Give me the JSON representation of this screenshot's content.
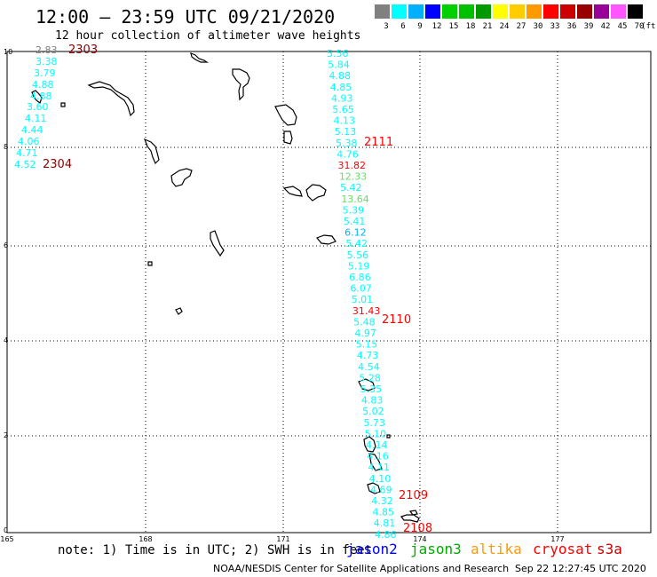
{
  "header": {
    "title": "12:00 – 23:59 UTC 09/21/2020",
    "subtitle": "12 hour collection of altimeter wave heights"
  },
  "legend": {
    "unit": "(ft)",
    "bins": [
      {
        "label": "3",
        "color": "#808080"
      },
      {
        "label": "6",
        "color": "#00ffff"
      },
      {
        "label": "9",
        "color": "#00b0ff"
      },
      {
        "label": "12",
        "color": "#0000ff"
      },
      {
        "label": "15",
        "color": "#00d000"
      },
      {
        "label": "18",
        "color": "#00c000"
      },
      {
        "label": "21",
        "color": "#009900"
      },
      {
        "label": "24",
        "color": "#ffff00"
      },
      {
        "label": "27",
        "color": "#ffcc00"
      },
      {
        "label": "30",
        "color": "#ff9900"
      },
      {
        "label": "33",
        "color": "#ff0000"
      },
      {
        "label": "36",
        "color": "#cc0000"
      },
      {
        "label": "39",
        "color": "#990000"
      },
      {
        "label": "42",
        "color": "#990099"
      },
      {
        "label": "45",
        "color": "#ff55ff"
      },
      {
        "label": "70",
        "color": "#000000"
      }
    ]
  },
  "map": {
    "x_ticks": [
      "165",
      "168",
      "171",
      "174",
      "177"
    ],
    "y_ticks": [
      "10",
      "8",
      "6",
      "4",
      "2",
      "0"
    ],
    "west_track": {
      "values": [
        "2.83",
        "3.38",
        "3.79",
        "4.88",
        "4.88",
        "3.60",
        "4.11",
        "4.44",
        "4.06",
        "4.71",
        "4.52"
      ],
      "colors": [
        "#808080",
        "#00ffff",
        "#00ffff",
        "#00ffff",
        "#00ffff",
        "#00ffff",
        "#00ffff",
        "#00ffff",
        "#00ffff",
        "#00ffff",
        "#00ffff"
      ]
    },
    "east_track": {
      "values": [
        "5.56",
        "5.84",
        "4.88",
        "4.85",
        "4.93",
        "5.65",
        "4.13",
        "5.13",
        "5.38",
        "4.76",
        "31.82",
        "12.33",
        "5.42",
        "13.64",
        "5.39",
        "5.41",
        "6.12",
        "5.42",
        "5.56",
        "5.19",
        "6.86",
        "6.07",
        "5.01",
        "31.43",
        "5.48",
        "4.97",
        "5.15",
        "4.73",
        "4.54",
        "5.28",
        "5.35",
        "4.83",
        "5.02",
        "5.73",
        "5.10",
        "4.14",
        "4.16",
        "4.11",
        "4.10",
        "4.69",
        "4.32",
        "4.85",
        "4.81",
        "4.86"
      ],
      "colors": [
        "#00ffff",
        "#00ffff",
        "#00ffff",
        "#00ffff",
        "#00ffff",
        "#00ffff",
        "#00ffff",
        "#00ffff",
        "#00ffff",
        "#00ffff",
        "#ff0000",
        "#66dd66",
        "#00ffff",
        "#66dd66",
        "#00ffff",
        "#00ffff",
        "#00b0ff",
        "#00ffff",
        "#00ffff",
        "#00ffff",
        "#00ffff",
        "#00ffff",
        "#00ffff",
        "#ff0000",
        "#00ffff",
        "#00ffff",
        "#00ffff",
        "#00ffff",
        "#00ffff",
        "#00ffff",
        "#00ffff",
        "#00ffff",
        "#00ffff",
        "#00ffff",
        "#00ffff",
        "#00ffff",
        "#00ffff",
        "#00ffff",
        "#00ffff",
        "#00ffff",
        "#00ffff",
        "#00ffff",
        "#00ffff",
        "#00ffff"
      ]
    },
    "time_labels": [
      {
        "text": "2303",
        "color": "#8b0000"
      },
      {
        "text": "2304",
        "color": "#8b0000"
      },
      {
        "text": "2111",
        "color": "#ff0000"
      },
      {
        "text": "2110",
        "color": "#ff0000"
      },
      {
        "text": "2109",
        "color": "#ff0000"
      },
      {
        "text": "2108",
        "color": "#ff0000"
      }
    ]
  },
  "footer": {
    "note": "note: 1) Time is in UTC; 2) SWH is in feet",
    "satellites": [
      {
        "name": "jason2",
        "color": "#0000ff"
      },
      {
        "name": "jason3",
        "color": "#00aa00"
      },
      {
        "name": "altika",
        "color": "#ff9900"
      },
      {
        "name": "cryosat",
        "color": "#ff0000"
      },
      {
        "name": "s3a",
        "color": "#cc0000"
      }
    ],
    "credit": "NOAA/NESDIS Center for Satellite Applications and Research",
    "datestamp": "Sep 22 12:27:45 UTC 2020"
  }
}
